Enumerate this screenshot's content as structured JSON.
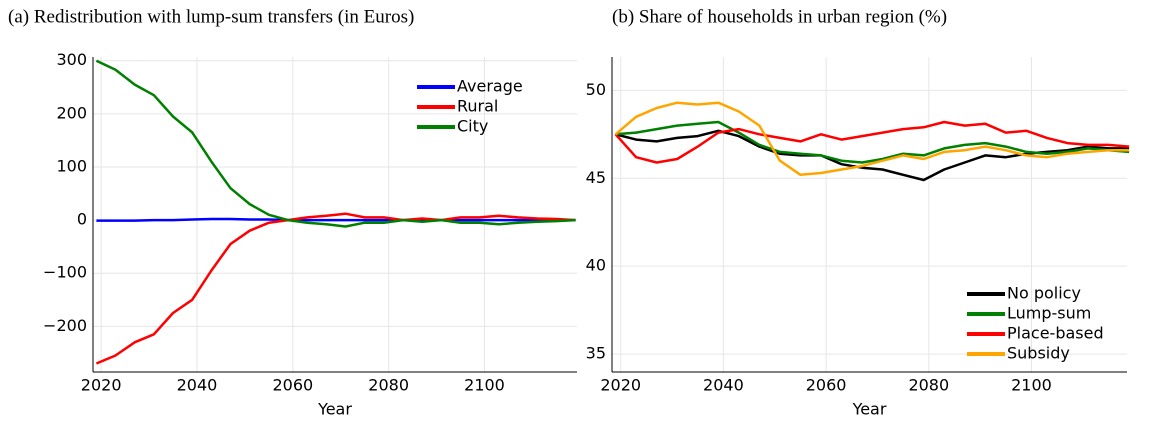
{
  "chart_data": [
    {
      "type": "line",
      "title": "(a) Redistribution with lump-sum transfers (in Euros)",
      "x_label": "Year",
      "x": [
        2019,
        2023,
        2027,
        2031,
        2035,
        2039,
        2043,
        2047,
        2051,
        2055,
        2059,
        2063,
        2067,
        2071,
        2075,
        2079,
        2083,
        2087,
        2091,
        2095,
        2099,
        2103,
        2107,
        2111,
        2115,
        2119
      ],
      "xlim": [
        2018.3,
        2119.3
      ],
      "xticks": [
        2020,
        2040,
        2060,
        2080,
        2100
      ],
      "ylim": [
        -286,
        307
      ],
      "yticks": [
        {
          "value": -200,
          "label": "−200"
        },
        {
          "value": -100,
          "label": "−100"
        },
        0,
        100,
        200,
        300
      ],
      "grid": true,
      "legend": "top-right",
      "series": [
        {
          "name": "Average",
          "color": "#0000ff",
          "values": [
            -1,
            -1,
            -1,
            0,
            0,
            1,
            2,
            2,
            1,
            1,
            0,
            0,
            0,
            0,
            0,
            0,
            0,
            0,
            0,
            0,
            0,
            0,
            0,
            0,
            0,
            0
          ]
        },
        {
          "name": "Rural",
          "color": "#ff0000",
          "values": [
            -270,
            -255,
            -230,
            -215,
            -175,
            -150,
            -95,
            -45,
            -20,
            -5,
            0,
            5,
            8,
            12,
            5,
            5,
            0,
            3,
            0,
            5,
            5,
            8,
            5,
            3,
            2,
            0
          ]
        },
        {
          "name": "City",
          "color": "#008000",
          "values": [
            300,
            283,
            255,
            235,
            195,
            165,
            110,
            60,
            30,
            10,
            0,
            -5,
            -8,
            -12,
            -5,
            -5,
            0,
            -3,
            0,
            -5,
            -5,
            -8,
            -5,
            -3,
            -2,
            0
          ]
        }
      ]
    },
    {
      "type": "line",
      "title": "(b) Share of households in urban region (%)",
      "x_label": "Year",
      "x": [
        2019,
        2023,
        2027,
        2031,
        2035,
        2039,
        2043,
        2047,
        2051,
        2055,
        2059,
        2063,
        2067,
        2071,
        2075,
        2079,
        2083,
        2087,
        2091,
        2095,
        2099,
        2103,
        2107,
        2111,
        2115,
        2119
      ],
      "xlim": [
        2018.3,
        2118.6
      ],
      "xticks": [
        2020,
        2040,
        2060,
        2080,
        2100
      ],
      "ylim": [
        33.98,
        51.9
      ],
      "yticks": [
        35,
        40,
        45,
        50
      ],
      "grid": true,
      "legend": "bottom-right",
      "series": [
        {
          "name": "No policy",
          "color": "#000000",
          "values": [
            47.5,
            47.2,
            47.1,
            47.3,
            47.4,
            47.7,
            47.4,
            46.8,
            46.4,
            46.3,
            46.3,
            45.8,
            45.6,
            45.5,
            45.2,
            44.9,
            45.5,
            45.9,
            46.3,
            46.2,
            46.4,
            46.5,
            46.6,
            46.8,
            46.7,
            46.7
          ]
        },
        {
          "name": "Lump-sum",
          "color": "#008000",
          "values": [
            47.5,
            47.6,
            47.8,
            48.0,
            48.1,
            48.2,
            47.6,
            46.9,
            46.5,
            46.4,
            46.3,
            46.0,
            45.9,
            46.1,
            46.4,
            46.3,
            46.7,
            46.9,
            47.0,
            46.8,
            46.5,
            46.4,
            46.5,
            46.7,
            46.6,
            46.5
          ]
        },
        {
          "name": "Place-based",
          "color": "#ff0000",
          "values": [
            47.5,
            46.2,
            45.9,
            46.1,
            46.8,
            47.6,
            47.8,
            47.5,
            47.3,
            47.1,
            47.5,
            47.2,
            47.4,
            47.6,
            47.8,
            47.9,
            48.2,
            48.0,
            48.1,
            47.6,
            47.7,
            47.3,
            47.0,
            46.9,
            46.9,
            46.8
          ]
        },
        {
          "name": "Subsidy",
          "color": "#ffa500",
          "values": [
            47.5,
            48.5,
            49.0,
            49.3,
            49.2,
            49.3,
            48.8,
            48.0,
            46.0,
            45.2,
            45.3,
            45.5,
            45.7,
            46.0,
            46.3,
            46.1,
            46.5,
            46.6,
            46.8,
            46.6,
            46.3,
            46.2,
            46.4,
            46.5,
            46.6,
            46.6
          ]
        }
      ]
    }
  ]
}
